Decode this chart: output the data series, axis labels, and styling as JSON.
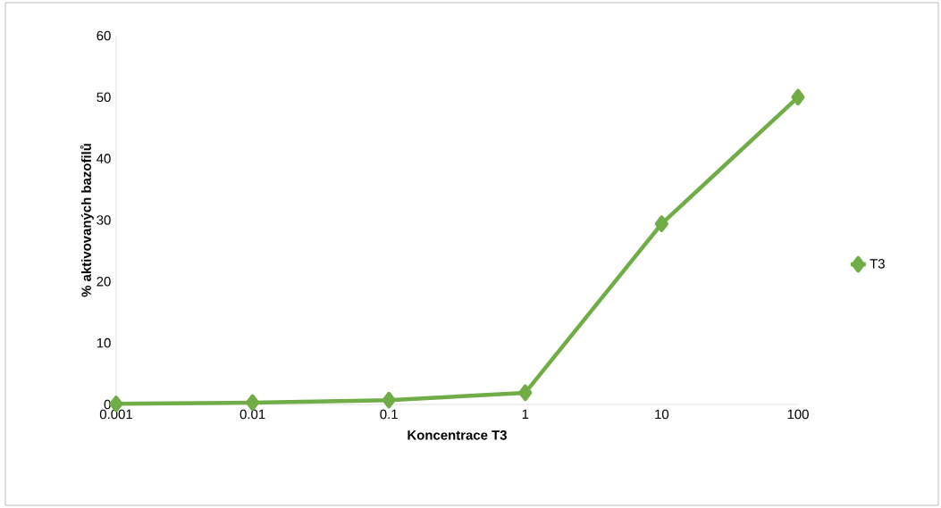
{
  "chart_data": {
    "type": "line",
    "xlabel": "Koncentrace T3",
    "ylabel": "% aktivovaných bazofilů",
    "categories": [
      "0.001",
      "0.01",
      "0.1",
      "1",
      "10",
      "100"
    ],
    "series": [
      {
        "name": "T3",
        "color": "#70ad47",
        "values": [
          0.1,
          0.3,
          0.7,
          1.9,
          29.4,
          50
        ]
      }
    ],
    "ylim": [
      0,
      60
    ],
    "yticks": [
      0,
      10,
      20,
      30,
      40,
      50,
      60
    ],
    "grid": false,
    "legend": "right",
    "marker": "diamond",
    "line_style": "solid"
  }
}
